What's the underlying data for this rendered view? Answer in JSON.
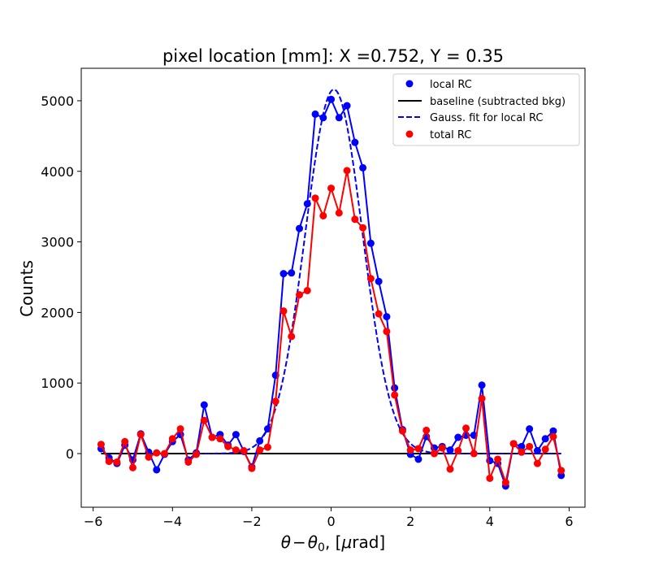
{
  "chart_data": {
    "type": "line",
    "title": "pixel location [mm]: X =0.752, Y = 0.35",
    "xlabel_parts": {
      "theta": "θ",
      "minus": "−",
      "theta0": "θ",
      "sub0": "0",
      "comma": ", [",
      "mu": "μ",
      "unit": "rad]"
    },
    "ylabel": "Counts",
    "xlim": [
      -6.3,
      6.4
    ],
    "ylim": [
      -760,
      5460
    ],
    "xticks": [
      -6,
      -4,
      -2,
      0,
      2,
      4,
      6
    ],
    "xtick_labels": [
      "−6",
      "−4",
      "−2",
      "0",
      "2",
      "4",
      "6"
    ],
    "yticks": [
      0,
      1000,
      2000,
      3000,
      4000,
      5000
    ],
    "ytick_labels": [
      "0",
      "1000",
      "2000",
      "3000",
      "4000",
      "5000"
    ],
    "grid": false,
    "legend_placement": "top-right",
    "x": [
      -5.8,
      -5.6,
      -5.4,
      -5.2,
      -5.0,
      -4.8,
      -4.6,
      -4.4,
      -4.2,
      -4.0,
      -3.8,
      -3.6,
      -3.4,
      -3.2,
      -3.0,
      -2.8,
      -2.6,
      -2.4,
      -2.2,
      -2.0,
      -1.8,
      -1.6,
      -1.4,
      -1.2,
      -1.0,
      -0.8,
      -0.6,
      -0.4,
      -0.2,
      0.0,
      0.2,
      0.4,
      0.6,
      0.8,
      1.0,
      1.2,
      1.4,
      1.6,
      1.8,
      2.0,
      2.2,
      2.4,
      2.6,
      2.8,
      3.0,
      3.2,
      3.4,
      3.6,
      3.8,
      4.0,
      4.2,
      4.4,
      4.6,
      4.8,
      5.0,
      5.2,
      5.4,
      5.6,
      5.8
    ],
    "series": [
      {
        "name": "local RC",
        "kind": "line+markers",
        "color": "#0000ff",
        "values": [
          70,
          -60,
          -140,
          120,
          -90,
          280,
          20,
          -230,
          -10,
          170,
          270,
          -90,
          10,
          690,
          230,
          270,
          120,
          270,
          30,
          -190,
          180,
          350,
          1110,
          2550,
          2560,
          3190,
          3540,
          4810,
          4760,
          5020,
          4760,
          4930,
          4410,
          4050,
          2980,
          2440,
          1940,
          930,
          340,
          -10,
          -80,
          240,
          80,
          100,
          50,
          230,
          260,
          260,
          970,
          -100,
          -140,
          -460,
          140,
          100,
          350,
          40,
          210,
          320,
          -310
        ]
      },
      {
        "name": "baseline (subtracted bkg)",
        "kind": "line",
        "color": "#000000",
        "x_range": [
          -5.8,
          5.8
        ],
        "value": 0
      },
      {
        "name": "Gauss. fit for local RC",
        "kind": "dashed-line",
        "color": "#0000ff",
        "amplitude": 5160,
        "center": 0.07,
        "sigma": 0.72,
        "x_range": [
          -3.4,
          5.8
        ]
      },
      {
        "name": "total RC",
        "kind": "line+markers",
        "color": "#ff0000",
        "values": [
          130,
          -110,
          -120,
          170,
          -200,
          270,
          -50,
          10,
          0,
          210,
          350,
          -120,
          -10,
          470,
          230,
          210,
          100,
          50,
          40,
          -210,
          50,
          90,
          740,
          2020,
          1660,
          2250,
          2310,
          3620,
          3370,
          3760,
          3410,
          4010,
          3320,
          3200,
          2480,
          1980,
          1730,
          830,
          320,
          50,
          70,
          330,
          0,
          80,
          -220,
          40,
          360,
          0,
          780,
          -350,
          -80,
          -410,
          140,
          20,
          100,
          -140,
          60,
          240,
          -240
        ]
      }
    ]
  }
}
